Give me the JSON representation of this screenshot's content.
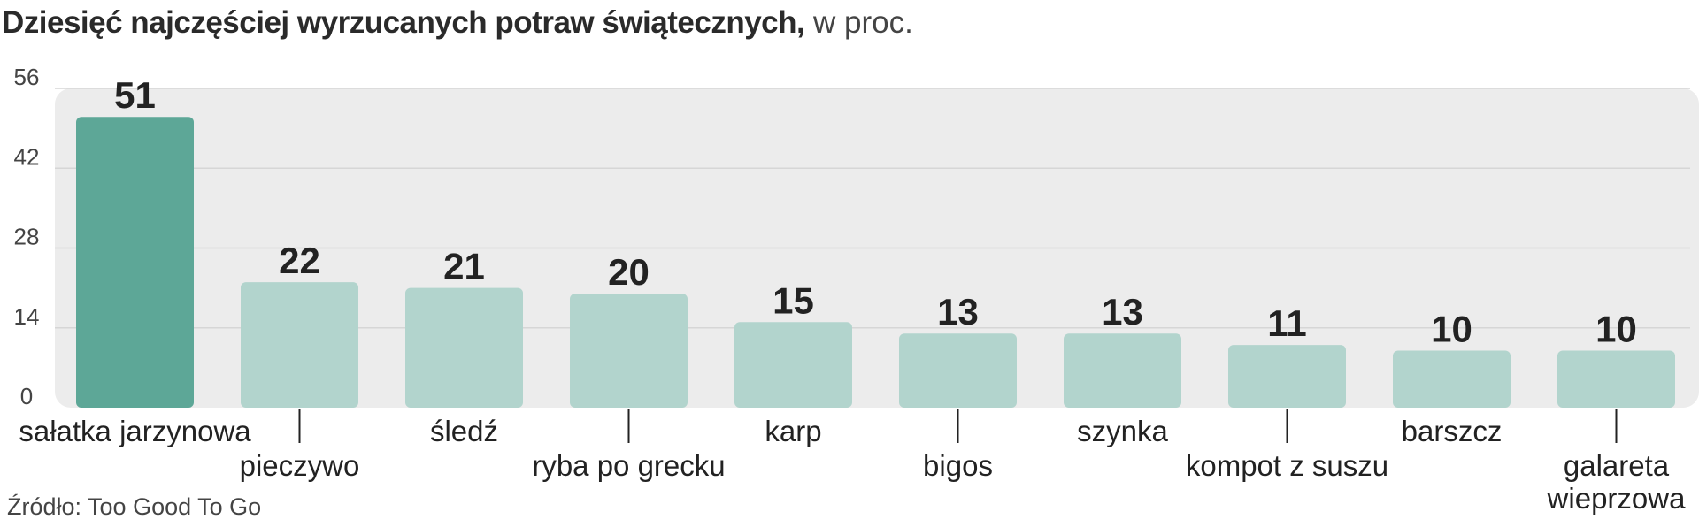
{
  "title": "Dziesięć najczęściej wyrzucanych potraw świątecznych,",
  "title_unit": "w proc.",
  "source": "Źródło: Too Good To Go",
  "colors": {
    "highlight_bar": "#5da797",
    "bar": "#b2d4cd",
    "panel": "#ececec",
    "grid": "#d6d6d6",
    "value_label": "#222222",
    "tick_text": "#444444"
  },
  "chart_data": {
    "type": "bar",
    "title": "Dziesięć najczęściej wyrzucanych potraw świątecznych, w proc.",
    "categories": [
      [
        "sałatka jarzynowa"
      ],
      [
        "pieczywo"
      ],
      [
        "śledź"
      ],
      [
        "ryba po grecku"
      ],
      [
        "karp"
      ],
      [
        "bigos"
      ],
      [
        "szynka"
      ],
      [
        "kompot z suszu"
      ],
      [
        "barszcz"
      ],
      [
        "galareta",
        "wieprzowa"
      ]
    ],
    "values": [
      51,
      22,
      21,
      20,
      15,
      13,
      13,
      11,
      10,
      10
    ],
    "highlight_index": 0,
    "yticks": [
      0,
      14,
      28,
      42,
      56
    ],
    "ylim": [
      0,
      56
    ],
    "grid": true,
    "xlabel": "",
    "ylabel": ""
  }
}
